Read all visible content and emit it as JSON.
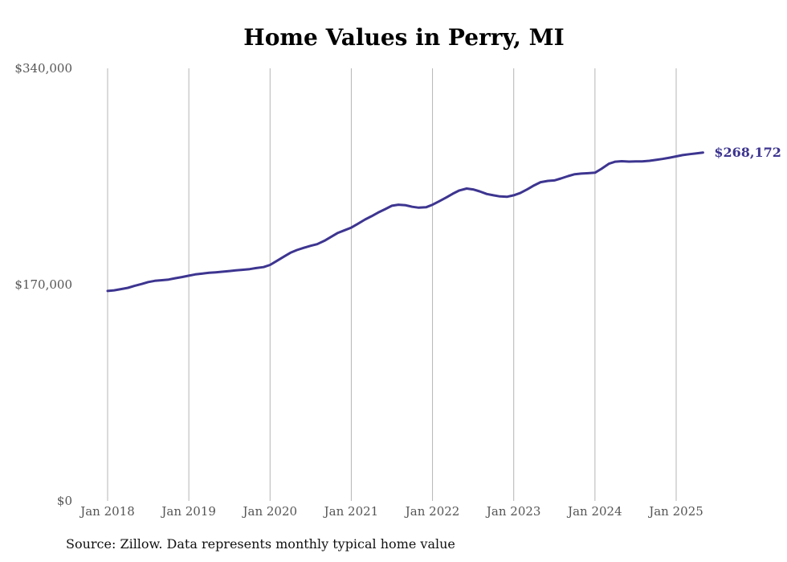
{
  "chart_data": {
    "type": "line",
    "title": "Home Values in Perry, MI",
    "xlabel": "",
    "ylabel": "",
    "ylim": [
      0,
      340000
    ],
    "yticks": [
      {
        "value": 0,
        "label": "$0"
      },
      {
        "value": 170000,
        "label": "$170,000"
      },
      {
        "value": 340000,
        "label": "$340,000"
      }
    ],
    "xticks": [
      {
        "value": 2018,
        "label": "Jan 2018"
      },
      {
        "value": 2019,
        "label": "Jan 2019"
      },
      {
        "value": 2020,
        "label": "Jan 2020"
      },
      {
        "value": 2021,
        "label": "Jan 2021"
      },
      {
        "value": 2022,
        "label": "Jan 2022"
      },
      {
        "value": 2023,
        "label": "Jan 2023"
      },
      {
        "value": 2024,
        "label": "Jan 2024"
      },
      {
        "value": 2025,
        "label": "Jan 2025"
      }
    ],
    "xlim": [
      2018,
      2025.33
    ],
    "grid": "vertical",
    "line_color": "#3d3590",
    "end_label": "$268,172",
    "series": [
      {
        "x": [
          2018.0,
          2018.08,
          2018.17,
          2018.25,
          2018.33,
          2018.42,
          2018.5,
          2018.58,
          2018.67,
          2018.75,
          2018.83,
          2018.92,
          2019.0,
          2019.08,
          2019.17,
          2019.25,
          2019.33,
          2019.42,
          2019.5,
          2019.58,
          2019.67,
          2019.75,
          2019.83,
          2019.92,
          2020.0,
          2020.08,
          2020.17,
          2020.25,
          2020.33,
          2020.42,
          2020.5,
          2020.58,
          2020.67,
          2020.75,
          2020.83,
          2020.92,
          2021.0,
          2021.08,
          2021.17,
          2021.25,
          2021.33,
          2021.42,
          2021.5,
          2021.58,
          2021.67,
          2021.75,
          2021.83,
          2021.92,
          2022.0,
          2022.08,
          2022.17,
          2022.25,
          2022.33,
          2022.42,
          2022.5,
          2022.58,
          2022.67,
          2022.75,
          2022.83,
          2022.92,
          2023.0,
          2023.08,
          2023.17,
          2023.25,
          2023.33,
          2023.42,
          2023.5,
          2023.58,
          2023.67,
          2023.75,
          2023.83,
          2023.92,
          2024.0,
          2024.08,
          2024.17,
          2024.25,
          2024.33,
          2024.42,
          2024.5,
          2024.58,
          2024.67,
          2024.75,
          2024.83,
          2024.92,
          2025.0,
          2025.08,
          2025.17,
          2025.25,
          2025.33
        ],
        "values": [
          165000,
          165500,
          166500,
          167500,
          169000,
          170500,
          172000,
          173000,
          173500,
          174000,
          175000,
          176000,
          177000,
          178000,
          178700,
          179300,
          179700,
          180200,
          180700,
          181200,
          181700,
          182200,
          183000,
          183800,
          185500,
          188500,
          192000,
          195000,
          197200,
          199000,
          200500,
          201800,
          204500,
          207500,
          210500,
          212800,
          214800,
          217800,
          221200,
          223800,
          226600,
          229400,
          232000,
          232800,
          232400,
          231200,
          230500,
          230800,
          232800,
          235500,
          238500,
          241500,
          244000,
          245500,
          244800,
          243300,
          241200,
          240200,
          239300,
          239100,
          240200,
          242000,
          245000,
          248000,
          250500,
          251500,
          251900,
          253400,
          255300,
          256800,
          257300,
          257600,
          258000,
          261000,
          265000,
          266600,
          267000,
          266700,
          266800,
          266800,
          267300,
          268000,
          268800,
          269800,
          270800,
          271800,
          272600,
          273200,
          273800
        ]
      }
    ]
  },
  "source_text": "Source: Zillow. Data represents monthly typical home value"
}
